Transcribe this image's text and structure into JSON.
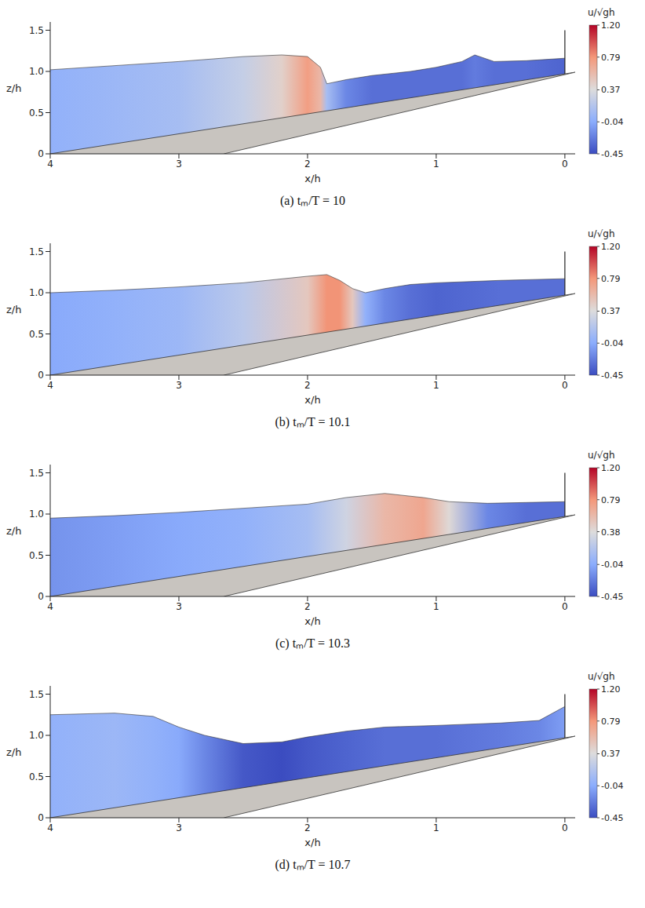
{
  "chart_data": [
    {
      "type": "area",
      "title": "(a) tₘ/T = 10",
      "x_label": "x/h",
      "y_label": "z/h",
      "xlim": [
        4,
        -0.08
      ],
      "xticks": [
        4,
        3,
        2,
        1,
        0
      ],
      "ylim": [
        0,
        1.6
      ],
      "yticks": [
        0,
        0.5,
        {
          "value": 1,
          "label": "1.0"
        },
        1.5
      ],
      "surface": {
        "x": [
          4.0,
          3.5,
          3.0,
          2.5,
          2.2,
          2.0,
          1.9,
          1.85,
          1.7,
          1.5,
          1.2,
          1.0,
          0.8,
          0.7,
          0.55,
          0.3,
          0.0
        ],
        "z": [
          1.02,
          1.07,
          1.12,
          1.18,
          1.2,
          1.18,
          1.05,
          0.85,
          0.9,
          0.95,
          1.0,
          1.05,
          1.12,
          1.2,
          1.12,
          1.13,
          1.16
        ],
        "u": [
          0.0,
          0.05,
          0.1,
          0.25,
          0.45,
          0.75,
          0.6,
          0.1,
          -0.2,
          -0.3,
          -0.3,
          -0.3,
          -0.3,
          -0.25,
          -0.3,
          -0.3,
          -0.35
        ]
      },
      "bed": {
        "x": [
          4,
          -0.08
        ],
        "z": [
          0,
          0.99
        ]
      },
      "bed_line": {
        "x": [
          2.65,
          -0.08
        ],
        "z": [
          0,
          0.99
        ]
      },
      "wall": {
        "x": 0,
        "z": [
          0.97,
          1.5
        ]
      },
      "colorbar": {
        "label": "u/√gh",
        "range": [
          -0.45,
          1.2
        ],
        "ticks": [
          {
            "value": 1.2,
            "label": "1.20"
          },
          0.79,
          0.37,
          -0.04,
          -0.45
        ],
        "colors": [
          "#3b4cc0",
          "#8badfd",
          "#dddcdc",
          "#f4987a",
          "#b40426"
        ]
      }
    },
    {
      "type": "area",
      "title": "(b) tₘ/T = 10.1",
      "x_label": "x/h",
      "y_label": "z/h",
      "xlim": [
        4,
        -0.08
      ],
      "xticks": [
        4,
        3,
        2,
        1,
        0
      ],
      "ylim": [
        0,
        1.6
      ],
      "yticks": [
        0,
        0.5,
        {
          "value": 1,
          "label": "1.0"
        },
        1.5
      ],
      "surface": {
        "x": [
          4.0,
          3.5,
          3.0,
          2.5,
          2.0,
          1.85,
          1.75,
          1.65,
          1.55,
          1.4,
          1.2,
          1.0,
          0.5,
          0.0
        ],
        "z": [
          1.0,
          1.03,
          1.07,
          1.12,
          1.2,
          1.22,
          1.15,
          1.05,
          1.0,
          1.05,
          1.1,
          1.12,
          1.15,
          1.17
        ],
        "u": [
          -0.05,
          0.0,
          0.05,
          0.2,
          0.5,
          0.8,
          0.8,
          0.5,
          0.0,
          -0.2,
          -0.3,
          -0.35,
          -0.3,
          -0.3
        ]
      },
      "bed": {
        "x": [
          4,
          -0.08
        ],
        "z": [
          0,
          0.99
        ]
      },
      "bed_line": {
        "x": [
          2.65,
          -0.08
        ],
        "z": [
          0,
          0.99
        ]
      },
      "wall": {
        "x": 0,
        "z": [
          0.97,
          1.5
        ]
      },
      "colorbar": {
        "label": "u/√gh",
        "range": [
          -0.45,
          1.2
        ],
        "ticks": [
          {
            "value": 1.2,
            "label": "1.20"
          },
          0.79,
          0.37,
          -0.04,
          -0.45
        ],
        "colors": [
          "#3b4cc0",
          "#8badfd",
          "#dddcdc",
          "#f4987a",
          "#b40426"
        ]
      }
    },
    {
      "type": "area",
      "title": "(c) tₘ/T = 10.3",
      "x_label": "x/h",
      "y_label": "z/h",
      "xlim": [
        4,
        -0.08
      ],
      "xticks": [
        4,
        3,
        2,
        1,
        0
      ],
      "ylim": [
        0,
        1.6
      ],
      "yticks": [
        0,
        0.5,
        {
          "value": 1,
          "label": "1.0"
        },
        1.5
      ],
      "surface": {
        "x": [
          4.0,
          3.5,
          3.0,
          2.5,
          2.0,
          1.7,
          1.4,
          1.1,
          0.9,
          0.6,
          0.3,
          0.0
        ],
        "z": [
          0.95,
          0.98,
          1.02,
          1.07,
          1.12,
          1.2,
          1.25,
          1.2,
          1.15,
          1.13,
          1.14,
          1.15
        ],
        "u": [
          -0.15,
          -0.1,
          -0.05,
          0.0,
          0.1,
          0.3,
          0.6,
          0.7,
          0.4,
          -0.2,
          -0.3,
          -0.3
        ]
      },
      "bed": {
        "x": [
          4,
          -0.08
        ],
        "z": [
          0,
          0.99
        ]
      },
      "bed_line": {
        "x": [
          2.65,
          -0.08
        ],
        "z": [
          0,
          0.99
        ]
      },
      "wall": {
        "x": 0,
        "z": [
          0.97,
          1.5
        ]
      },
      "colorbar": {
        "label": "u/√gh",
        "range": [
          -0.45,
          1.2
        ],
        "ticks": [
          {
            "value": 1.2,
            "label": "1.20"
          },
          0.79,
          0.38,
          -0.04,
          -0.45
        ],
        "colors": [
          "#3b4cc0",
          "#8badfd",
          "#dddcdc",
          "#f4987a",
          "#b40426"
        ]
      }
    },
    {
      "type": "area",
      "title": "(d) tₘ/T = 10.7",
      "x_label": "x/h",
      "y_label": "z/h",
      "xlim": [
        4,
        -0.08
      ],
      "xticks": [
        4,
        3,
        2,
        1,
        0
      ],
      "ylim": [
        0,
        1.6
      ],
      "yticks": [
        0,
        0.5,
        {
          "value": 1,
          "label": "1.0"
        },
        1.5
      ],
      "surface": {
        "x": [
          4.0,
          3.5,
          3.2,
          3.0,
          2.8,
          2.5,
          2.2,
          2.0,
          1.7,
          1.4,
          1.0,
          0.5,
          0.2,
          0.0
        ],
        "z": [
          1.25,
          1.27,
          1.23,
          1.1,
          1.0,
          0.9,
          0.92,
          0.98,
          1.05,
          1.1,
          1.12,
          1.15,
          1.18,
          1.35
        ],
        "u": [
          0.0,
          0.05,
          0.0,
          -0.05,
          -0.2,
          -0.4,
          -0.45,
          -0.4,
          -0.35,
          -0.3,
          -0.3,
          -0.25,
          -0.2,
          -0.1
        ]
      },
      "bed": {
        "x": [
          4,
          -0.08
        ],
        "z": [
          0,
          0.99
        ]
      },
      "bed_line": {
        "x": [
          2.65,
          -0.08
        ],
        "z": [
          0,
          0.99
        ]
      },
      "wall": {
        "x": 0,
        "z": [
          0.97,
          1.5
        ]
      },
      "colorbar": {
        "label": "u/√gh",
        "range": [
          -0.45,
          1.2
        ],
        "ticks": [
          {
            "value": 1.2,
            "label": "1.20"
          },
          0.79,
          0.37,
          -0.04,
          -0.45
        ],
        "colors": [
          "#3b4cc0",
          "#8badfd",
          "#dddcdc",
          "#f4987a",
          "#b40426"
        ]
      }
    }
  ]
}
